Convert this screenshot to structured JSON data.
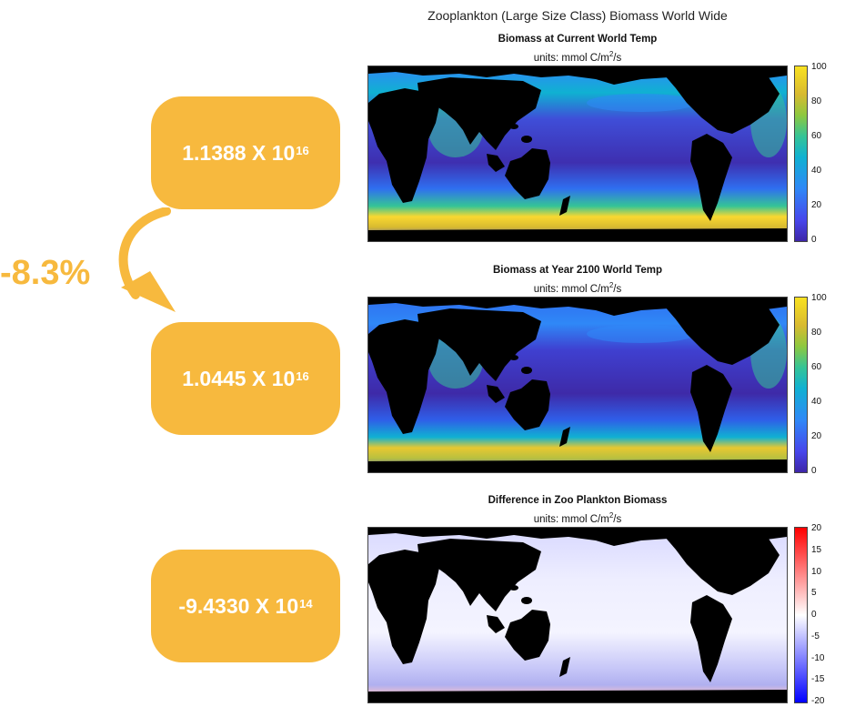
{
  "supertitle": "Zooplankton (Large Size Class) Biomass World Wide",
  "badges": [
    {
      "mantissa": "1.1388 X 10",
      "exponent": "16"
    },
    {
      "mantissa": "1.0445 X 10",
      "exponent": "16"
    },
    {
      "mantissa": "-9.4330 X 10",
      "exponent": "14"
    }
  ],
  "percent_change": "-8.3%",
  "colors": {
    "accent": "#f7b93e",
    "land": "#000000"
  },
  "chart_data": [
    {
      "type": "heatmap",
      "title": "Biomass at Current World Temp",
      "subtitle_prefix": "units: mmol C/m",
      "subtitle_exp": "2",
      "subtitle_suffix": "/s",
      "colorbar": {
        "min": 0,
        "max": 100,
        "ticks": [
          "100",
          "80",
          "60",
          "40",
          "20",
          "0"
        ]
      }
    },
    {
      "type": "heatmap",
      "title": "Biomass at Year 2100 World Temp",
      "subtitle_prefix": "units: mmol C/m",
      "subtitle_exp": "2",
      "subtitle_suffix": "/s",
      "colorbar": {
        "min": 0,
        "max": 100,
        "ticks": [
          "100",
          "80",
          "60",
          "40",
          "20",
          "0"
        ]
      }
    },
    {
      "type": "heatmap",
      "title": "Difference in Zoo Plankton Biomass",
      "subtitle_prefix": "units: mmol C/m",
      "subtitle_exp": "2",
      "subtitle_suffix": "/s",
      "colorbar": {
        "min": -20,
        "max": 20,
        "ticks": [
          "20",
          "15",
          "10",
          "5",
          "0",
          "-5",
          "-10",
          "-15",
          "-20"
        ]
      }
    }
  ]
}
